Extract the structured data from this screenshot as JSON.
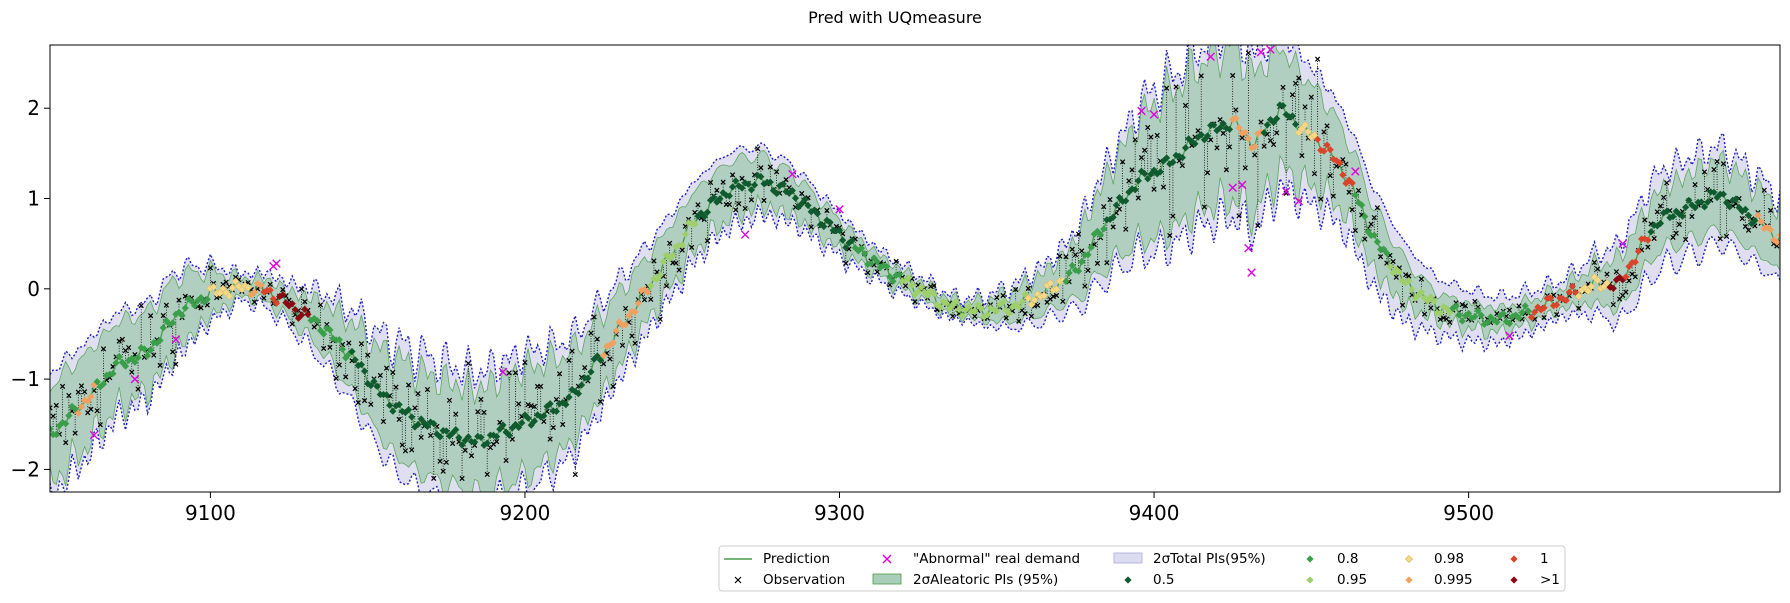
{
  "chart_data": {
    "type": "line",
    "title": "Pred with UQmeasure",
    "xlabel": "",
    "ylabel": "",
    "xlim": [
      9049,
      9599
    ],
    "ylim": [
      -2.25,
      2.7
    ],
    "x_ticks": [
      9100,
      9200,
      9300,
      9400,
      9500
    ],
    "y_ticks": [
      2,
      1,
      0,
      -1,
      -2
    ],
    "x_tick_labels": [
      "9100",
      "9200",
      "9300",
      "9400",
      "9500"
    ],
    "y_tick_labels": [
      "2",
      "1",
      "0",
      "−1",
      "−2"
    ],
    "grid": false,
    "legend_position": "bottom-right",
    "legend": {
      "prediction": "Prediction",
      "observation": "Observation",
      "abnormal": "\"Abnormal\" real demand",
      "aleatoric": "2σAleatoric PIs (95%)",
      "total": "2σTotal PIs(95%)",
      "q05": "0.5",
      "q08": "0.8",
      "q095": "0.95",
      "q098": "0.98",
      "q0995": "0.995",
      "q1": "1",
      "qgt1": ">1"
    },
    "colors": {
      "prediction": "#4a9b4a",
      "aleatoric_fill": "#a9cdb8",
      "total_fill": "#dcdcf0",
      "total_edge": "#1f1fbf",
      "abnormal": "#e000e0",
      "observation": "#000000",
      "q05": "#0f5a2e",
      "q08": "#3a9e4a",
      "q095": "#9fcf6a",
      "q098": "#f5d98b",
      "q0995": "#f0a060",
      "q1": "#d9442a",
      "qgt1": "#8b0a14"
    },
    "prediction_knots": [
      {
        "x": 9049,
        "y": -1.62
      },
      {
        "x": 9060,
        "y": -1.25
      },
      {
        "x": 9070,
        "y": -0.85
      },
      {
        "x": 9080,
        "y": -0.7
      },
      {
        "x": 9090,
        "y": -0.25
      },
      {
        "x": 9100,
        "y": -0.05
      },
      {
        "x": 9110,
        "y": 0.02
      },
      {
        "x": 9118,
        "y": -0.02
      },
      {
        "x": 9126,
        "y": -0.2
      },
      {
        "x": 9135,
        "y": -0.4
      },
      {
        "x": 9145,
        "y": -0.75
      },
      {
        "x": 9155,
        "y": -1.2
      },
      {
        "x": 9165,
        "y": -1.45
      },
      {
        "x": 9175,
        "y": -1.6
      },
      {
        "x": 9185,
        "y": -1.7
      },
      {
        "x": 9195,
        "y": -1.55
      },
      {
        "x": 9205,
        "y": -1.4
      },
      {
        "x": 9215,
        "y": -1.2
      },
      {
        "x": 9225,
        "y": -0.7
      },
      {
        "x": 9235,
        "y": -0.2
      },
      {
        "x": 9245,
        "y": 0.3
      },
      {
        "x": 9255,
        "y": 0.8
      },
      {
        "x": 9265,
        "y": 1.1
      },
      {
        "x": 9275,
        "y": 1.2
      },
      {
        "x": 9285,
        "y": 1.05
      },
      {
        "x": 9295,
        "y": 0.75
      },
      {
        "x": 9305,
        "y": 0.45
      },
      {
        "x": 9315,
        "y": 0.2
      },
      {
        "x": 9325,
        "y": 0.0
      },
      {
        "x": 9335,
        "y": -0.2
      },
      {
        "x": 9345,
        "y": -0.25
      },
      {
        "x": 9355,
        "y": -0.2
      },
      {
        "x": 9365,
        "y": -0.05
      },
      {
        "x": 9375,
        "y": 0.2
      },
      {
        "x": 9385,
        "y": 0.75
      },
      {
        "x": 9395,
        "y": 1.2
      },
      {
        "x": 9405,
        "y": 1.4
      },
      {
        "x": 9415,
        "y": 1.7
      },
      {
        "x": 9425,
        "y": 1.85
      },
      {
        "x": 9432,
        "y": 1.6
      },
      {
        "x": 9440,
        "y": 2.0
      },
      {
        "x": 9448,
        "y": 1.75
      },
      {
        "x": 9455,
        "y": 1.55
      },
      {
        "x": 9462,
        "y": 1.2
      },
      {
        "x": 9470,
        "y": 0.55
      },
      {
        "x": 9480,
        "y": 0.05
      },
      {
        "x": 9490,
        "y": -0.2
      },
      {
        "x": 9500,
        "y": -0.3
      },
      {
        "x": 9510,
        "y": -0.35
      },
      {
        "x": 9520,
        "y": -0.25
      },
      {
        "x": 9530,
        "y": -0.1
      },
      {
        "x": 9540,
        "y": 0.05
      },
      {
        "x": 9548,
        "y": 0.05
      },
      {
        "x": 9552,
        "y": 0.3
      },
      {
        "x": 9560,
        "y": 0.75
      },
      {
        "x": 9570,
        "y": 0.9
      },
      {
        "x": 9580,
        "y": 1.05
      },
      {
        "x": 9590,
        "y": 0.8
      },
      {
        "x": 9599,
        "y": 0.55
      }
    ],
    "aleatoric_halfwidth_knots": [
      {
        "x": 9049,
        "y": 0.55
      },
      {
        "x": 9090,
        "y": 0.4
      },
      {
        "x": 9110,
        "y": 0.1
      },
      {
        "x": 9125,
        "y": 0.15
      },
      {
        "x": 9160,
        "y": 0.55
      },
      {
        "x": 9200,
        "y": 0.6
      },
      {
        "x": 9240,
        "y": 0.35
      },
      {
        "x": 9270,
        "y": 0.3
      },
      {
        "x": 9310,
        "y": 0.12
      },
      {
        "x": 9340,
        "y": 0.08
      },
      {
        "x": 9370,
        "y": 0.25
      },
      {
        "x": 9400,
        "y": 0.75
      },
      {
        "x": 9425,
        "y": 0.85
      },
      {
        "x": 9460,
        "y": 0.45
      },
      {
        "x": 9490,
        "y": 0.15
      },
      {
        "x": 9530,
        "y": 0.12
      },
      {
        "x": 9550,
        "y": 0.3
      },
      {
        "x": 9575,
        "y": 0.38
      },
      {
        "x": 9599,
        "y": 0.35
      }
    ],
    "total_extra_knots": [
      {
        "x": 9049,
        "y": 0.15
      },
      {
        "x": 9110,
        "y": 0.05
      },
      {
        "x": 9170,
        "y": 0.2
      },
      {
        "x": 9250,
        "y": 0.12
      },
      {
        "x": 9340,
        "y": 0.04
      },
      {
        "x": 9420,
        "y": 0.2
      },
      {
        "x": 9470,
        "y": 0.2
      },
      {
        "x": 9530,
        "y": 0.08
      },
      {
        "x": 9560,
        "y": 0.2
      },
      {
        "x": 9599,
        "y": 0.12
      }
    ],
    "abnormal_points": [
      {
        "x": 9063,
        "y": -1.62
      },
      {
        "x": 9076,
        "y": -1.0
      },
      {
        "x": 9089,
        "y": -0.56
      },
      {
        "x": 9120,
        "y": 0.25
      },
      {
        "x": 9121,
        "y": 0.28
      },
      {
        "x": 9193,
        "y": -0.92
      },
      {
        "x": 9270,
        "y": 0.6
      },
      {
        "x": 9285,
        "y": 1.27
      },
      {
        "x": 9300,
        "y": 0.88
      },
      {
        "x": 9396,
        "y": 1.97
      },
      {
        "x": 9400,
        "y": 1.93
      },
      {
        "x": 9418,
        "y": 2.57
      },
      {
        "x": 9425,
        "y": 1.12
      },
      {
        "x": 9428,
        "y": 1.15
      },
      {
        "x": 9430,
        "y": 0.45
      },
      {
        "x": 9431,
        "y": 0.18
      },
      {
        "x": 9434,
        "y": 2.62
      },
      {
        "x": 9437,
        "y": 2.65
      },
      {
        "x": 9442,
        "y": 1.08
      },
      {
        "x": 9446,
        "y": 0.97
      },
      {
        "x": 9464,
        "y": 1.3
      },
      {
        "x": 9513,
        "y": -0.52
      },
      {
        "x": 9549,
        "y": 0.5
      }
    ],
    "quantile_segments": [
      {
        "from": 9049,
        "to": 9058,
        "q": "0.8"
      },
      {
        "from": 9058,
        "to": 9064,
        "q": "0.995"
      },
      {
        "from": 9064,
        "to": 9100,
        "q": "0.8"
      },
      {
        "from": 9100,
        "to": 9113,
        "q": "0.98"
      },
      {
        "from": 9113,
        "to": 9117,
        "q": "0.995"
      },
      {
        "from": 9117,
        "to": 9122,
        "q": "1"
      },
      {
        "from": 9122,
        "to": 9132,
        "q": ">1"
      },
      {
        "from": 9132,
        "to": 9145,
        "q": "0.8"
      },
      {
        "from": 9145,
        "to": 9225,
        "q": "0.5"
      },
      {
        "from": 9225,
        "to": 9240,
        "q": "0.995"
      },
      {
        "from": 9240,
        "to": 9255,
        "q": "0.95"
      },
      {
        "from": 9255,
        "to": 9305,
        "q": "0.5"
      },
      {
        "from": 9305,
        "to": 9320,
        "q": "0.8"
      },
      {
        "from": 9320,
        "to": 9360,
        "q": "0.95"
      },
      {
        "from": 9360,
        "to": 9372,
        "q": "0.98"
      },
      {
        "from": 9372,
        "to": 9385,
        "q": "0.8"
      },
      {
        "from": 9385,
        "to": 9425,
        "q": "0.5"
      },
      {
        "from": 9425,
        "to": 9435,
        "q": "0.995"
      },
      {
        "from": 9435,
        "to": 9446,
        "q": "0.5"
      },
      {
        "from": 9446,
        "to": 9452,
        "q": "0.98"
      },
      {
        "from": 9452,
        "to": 9464,
        "q": "1"
      },
      {
        "from": 9464,
        "to": 9475,
        "q": "0.8"
      },
      {
        "from": 9475,
        "to": 9495,
        "q": "0.95"
      },
      {
        "from": 9495,
        "to": 9520,
        "q": "0.8"
      },
      {
        "from": 9520,
        "to": 9535,
        "q": "1"
      },
      {
        "from": 9535,
        "to": 9545,
        "q": "0.98"
      },
      {
        "from": 9545,
        "to": 9550,
        "q": ">1"
      },
      {
        "from": 9550,
        "to": 9558,
        "q": "1"
      },
      {
        "from": 9558,
        "to": 9592,
        "q": "0.5"
      },
      {
        "from": 9592,
        "to": 9599,
        "q": "0.995"
      }
    ]
  }
}
